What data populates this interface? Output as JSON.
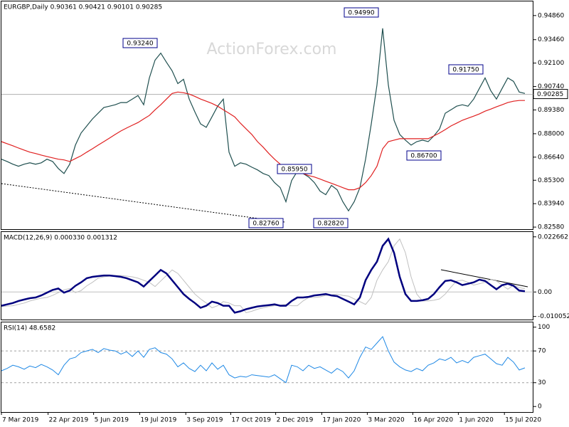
{
  "chart_data": [
    {
      "type": "line",
      "title": "EURGBP,Daily  0.90361 0.90421 0.90101 0.90285",
      "watermark": "ActionForex.com",
      "x": [
        0,
        1,
        2,
        3,
        4,
        5,
        6,
        7,
        8,
        9,
        10,
        11,
        12,
        13,
        14,
        15,
        16,
        17,
        18,
        19,
        20,
        21,
        22,
        23,
        24,
        25,
        26,
        27,
        28,
        29,
        30,
        31,
        32,
        33,
        34,
        35,
        36,
        37,
        38,
        39,
        40,
        41,
        42,
        43,
        44,
        45,
        46,
        47,
        48,
        49,
        50,
        51,
        52,
        53,
        54,
        55,
        56,
        57,
        58,
        59,
        60,
        61,
        62,
        63,
        64,
        65,
        66,
        67,
        68,
        69,
        70,
        71,
        72,
        73,
        74,
        75,
        76,
        77,
        78,
        79,
        80,
        81,
        82,
        83,
        84,
        85,
        86,
        87,
        88,
        89,
        90,
        91,
        92
      ],
      "xlim": [
        0,
        93.5
      ],
      "series": [
        {
          "color": "#1f4f4f",
          "values": [
            0.8652,
            0.8639,
            0.8623,
            0.8611,
            0.8623,
            0.8631,
            0.8623,
            0.8631,
            0.8652,
            0.8639,
            0.8598,
            0.8569,
            0.8623,
            0.8734,
            0.8804,
            0.8845,
            0.8886,
            0.8919,
            0.8952,
            0.896,
            0.8968,
            0.8981,
            0.8981,
            0.9001,
            0.9022,
            0.8968,
            0.9124,
            0.9227,
            0.9268,
            0.9215,
            0.9165,
            0.9091,
            0.9116,
            0.9001,
            0.8927,
            0.8857,
            0.8837,
            0.8898,
            0.896,
            0.9001,
            0.8693,
            0.8611,
            0.8631,
            0.8623,
            0.8606,
            0.859,
            0.8569,
            0.8557,
            0.8516,
            0.8487,
            0.8405,
            0.8528,
            0.8582,
            0.8569,
            0.8549,
            0.8516,
            0.8467,
            0.8446,
            0.85,
            0.8475,
            0.8405,
            0.8352,
            0.8405,
            0.8487,
            0.8652,
            0.8857,
            0.9083,
            0.9412,
            0.9083,
            0.8878,
            0.8796,
            0.8763,
            0.8734,
            0.8754,
            0.8763,
            0.8754,
            0.8787,
            0.8828,
            0.8919,
            0.8939,
            0.896,
            0.8968,
            0.896,
            0.9001,
            0.9063,
            0.9124,
            0.905,
            0.9001,
            0.9063,
            0.9124,
            0.9104,
            0.9042,
            0.9034
          ]
        },
        {
          "color": "#e02020",
          "values": [
            0.8754,
            0.8742,
            0.873,
            0.8717,
            0.8705,
            0.8693,
            0.8685,
            0.8676,
            0.8668,
            0.866,
            0.8652,
            0.8648,
            0.8639,
            0.8656,
            0.8672,
            0.8693,
            0.8713,
            0.8734,
            0.8754,
            0.8775,
            0.8796,
            0.8816,
            0.8833,
            0.8849,
            0.8865,
            0.8886,
            0.8906,
            0.8939,
            0.8968,
            0.9001,
            0.9034,
            0.9042,
            0.9038,
            0.903,
            0.9017,
            0.9001,
            0.8989,
            0.8976,
            0.896,
            0.8939,
            0.8919,
            0.8898,
            0.8861,
            0.8828,
            0.8796,
            0.8754,
            0.8722,
            0.8685,
            0.8652,
            0.8623,
            0.8598,
            0.859,
            0.8578,
            0.8569,
            0.8557,
            0.8549,
            0.8537,
            0.8524,
            0.8512,
            0.85,
            0.8487,
            0.8475,
            0.8475,
            0.8487,
            0.8516,
            0.8557,
            0.8611,
            0.8713,
            0.8754,
            0.8763,
            0.8771,
            0.8771,
            0.8771,
            0.8771,
            0.8771,
            0.8771,
            0.8787,
            0.8804,
            0.8824,
            0.8845,
            0.8861,
            0.8878,
            0.889,
            0.8902,
            0.8915,
            0.8931,
            0.8943,
            0.8956,
            0.8968,
            0.8981,
            0.8989,
            0.8993,
            0.8993
          ]
        }
      ],
      "ylim": [
        0.8246,
        0.9568
      ],
      "yticks": [
        {
          "value": 0.9486,
          "label": "0.94860"
        },
        {
          "value": 0.9346,
          "label": "0.93460"
        },
        {
          "value": 0.921,
          "label": "0.92100"
        },
        {
          "value": 0.9074,
          "label": "0.90740"
        },
        {
          "value": 0.8938,
          "label": "0.89380"
        },
        {
          "value": 0.88,
          "label": "0.88000"
        },
        {
          "value": 0.8664,
          "label": "0.86640"
        },
        {
          "value": 0.853,
          "label": "0.85300"
        },
        {
          "value": 0.8394,
          "label": "0.83940"
        },
        {
          "value": 0.8258,
          "label": "0.82580"
        }
      ],
      "price_line": {
        "value": 0.90285,
        "label": "0.90285"
      },
      "annotations": [
        {
          "value": 0.9324,
          "label": "0.93240"
        },
        {
          "value": 0.9499,
          "label": "0.94990"
        },
        {
          "value": 0.9175,
          "label": "0.91750"
        },
        {
          "value": 0.8595,
          "label": "0.85950"
        },
        {
          "value": 0.867,
          "label": "0.86700"
        },
        {
          "value": 0.8276,
          "label": "0.82760"
        },
        {
          "value": 0.8282,
          "label": "0.82820"
        }
      ]
    },
    {
      "type": "line",
      "title": "MACD(12,26,9) 0.000330 0.001312",
      "x": [
        0,
        1,
        2,
        3,
        4,
        5,
        6,
        7,
        8,
        9,
        10,
        11,
        12,
        13,
        14,
        15,
        16,
        17,
        18,
        19,
        20,
        21,
        22,
        23,
        24,
        25,
        26,
        27,
        28,
        29,
        30,
        31,
        32,
        33,
        34,
        35,
        36,
        37,
        38,
        39,
        40,
        41,
        42,
        43,
        44,
        45,
        46,
        47,
        48,
        49,
        50,
        51,
        52,
        53,
        54,
        55,
        56,
        57,
        58,
        59,
        60,
        61,
        62,
        63,
        64,
        65,
        66,
        67,
        68,
        69,
        70,
        71,
        72,
        73,
        74,
        75,
        76,
        77,
        78,
        79,
        80,
        81,
        82,
        83,
        84,
        85,
        86,
        87,
        88,
        89,
        90,
        91,
        92
      ],
      "xlim": [
        0,
        93.5
      ],
      "series": [
        {
          "color": "#c0c0c0",
          "values": [
            -0.006,
            -0.0058,
            -0.00566,
            -0.00509,
            -0.00453,
            -0.00368,
            -0.00311,
            -0.00255,
            -0.00226,
            -0.00142,
            -0.00028,
            0.00085,
            0.00142,
            -0.00028,
            0.00057,
            0.00255,
            0.00396,
            0.00566,
            0.00623,
            0.00651,
            0.00679,
            0.00679,
            0.00651,
            0.00623,
            0.00566,
            0.00481,
            0.00396,
            0.00226,
            0.00453,
            0.00679,
            0.00906,
            0.00764,
            0.00481,
            0.00198,
            -0.00085,
            -0.00283,
            -0.00453,
            -0.00651,
            -0.00566,
            -0.00396,
            -0.00453,
            -0.00566,
            -0.00566,
            -0.00849,
            -0.00792,
            -0.00708,
            -0.00651,
            -0.00594,
            -0.00566,
            -0.00538,
            -0.00509,
            -0.00566,
            -0.00566,
            -0.00368,
            -0.00226,
            -0.00226,
            -0.00198,
            -0.00142,
            -0.00113,
            -0.00085,
            -0.00142,
            -0.0017,
            -0.00283,
            -0.00396,
            -0.00509,
            -0.00226,
            0.00481,
            0.00906,
            0.01245,
            0.01896,
            0.02179,
            0.01613,
            0.00623,
            -0.00085,
            -0.00368,
            -0.00368,
            -0.0034,
            -0.00283,
            -0.00085,
            0.00198,
            0.00453,
            0.00481,
            0.00396,
            0.00283,
            0.0034,
            0.00396,
            0.00509,
            0.00453,
            0.00283,
            0.00113,
            0.00283,
            0.0018,
            0.00131
          ],
          "width": 1
        },
        {
          "color": "#00007f",
          "values": [
            -0.00566,
            -0.00509,
            -0.00453,
            -0.00368,
            -0.00311,
            -0.00255,
            -0.00226,
            -0.00142,
            -0.00028,
            0.00085,
            0.00142,
            -0.00028,
            0.00057,
            0.00255,
            0.00396,
            0.00566,
            0.00623,
            0.00651,
            0.00679,
            0.00679,
            0.00651,
            0.00623,
            0.00566,
            0.00481,
            0.00396,
            0.00226,
            0.00453,
            0.00679,
            0.00906,
            0.00764,
            0.00481,
            0.00198,
            -0.00085,
            -0.00283,
            -0.00453,
            -0.00651,
            -0.00566,
            -0.00396,
            -0.00453,
            -0.00566,
            -0.00566,
            -0.00849,
            -0.00792,
            -0.00708,
            -0.00651,
            -0.00594,
            -0.00566,
            -0.00538,
            -0.00509,
            -0.00566,
            -0.00566,
            -0.00368,
            -0.00226,
            -0.00226,
            -0.00198,
            -0.00142,
            -0.00113,
            -0.00085,
            -0.00142,
            -0.0017,
            -0.00283,
            -0.00396,
            -0.00509,
            -0.00226,
            0.00481,
            0.00906,
            0.01245,
            0.01896,
            0.02179,
            0.01613,
            0.00623,
            -0.00085,
            -0.00368,
            -0.00368,
            -0.0034,
            -0.00283,
            -0.00085,
            0.00198,
            0.00453,
            0.00481,
            0.00396,
            0.00283,
            0.0034,
            0.00396,
            0.00509,
            0.00453,
            0.00283,
            0.00113,
            0.00283,
            0.0034,
            0.00255,
            0.00057,
            0.00033
          ],
          "width": 2.5
        }
      ],
      "ylim": [
        -0.01132,
        0.024645
      ],
      "yticks": [
        0.022662,
        {
          "value": 0,
          "label": "0.00"
        },
        -0.010052
      ]
    },
    {
      "type": "line",
      "title": "RSI(14) 48.6582",
      "x": [
        0,
        1,
        2,
        3,
        4,
        5,
        6,
        7,
        8,
        9,
        10,
        11,
        12,
        13,
        14,
        15,
        16,
        17,
        18,
        19,
        20,
        21,
        22,
        23,
        24,
        25,
        26,
        27,
        28,
        29,
        30,
        31,
        32,
        33,
        34,
        35,
        36,
        37,
        38,
        39,
        40,
        41,
        42,
        43,
        44,
        45,
        46,
        47,
        48,
        49,
        50,
        51,
        52,
        53,
        54,
        55,
        56,
        57,
        58,
        59,
        60,
        61,
        62,
        63,
        64,
        65,
        66,
        67,
        68,
        69,
        70,
        71,
        72,
        73,
        74,
        75,
        76,
        77,
        78,
        79,
        80,
        81,
        82,
        83,
        84,
        85,
        86,
        87,
        88,
        89,
        90,
        91,
        92
      ],
      "xlim": [
        0,
        93.5
      ],
      "series": [
        {
          "color": "#1e88e5",
          "values": [
            45,
            48,
            52,
            50,
            47,
            51,
            49,
            53,
            50,
            46,
            40,
            52,
            60,
            62,
            68,
            70,
            72,
            68,
            73,
            71,
            70,
            66,
            69,
            63,
            70,
            62,
            72,
            74,
            68,
            66,
            60,
            50,
            55,
            48,
            44,
            52,
            45,
            55,
            47,
            52,
            40,
            36,
            38,
            37,
            40,
            39,
            38,
            37,
            40,
            35,
            30,
            52,
            50,
            45,
            52,
            48,
            50,
            46,
            42,
            48,
            44,
            36,
            45,
            62,
            75,
            72,
            80,
            88,
            70,
            56,
            50,
            46,
            44,
            48,
            45,
            52,
            55,
            60,
            58,
            62,
            55,
            58,
            55,
            62,
            64,
            66,
            60,
            54,
            52,
            62,
            56,
            46,
            48.6582
          ],
          "width": 1
        }
      ],
      "ylim": [
        -7,
        106
      ],
      "yticks": [
        100,
        70,
        30,
        0
      ],
      "levels": [
        70,
        30
      ],
      "xticks": [
        {
          "value": 0,
          "label": "7 Mar 2019"
        },
        {
          "value": 8.2,
          "label": "22 Apr 2019"
        },
        {
          "value": 16.2,
          "label": "5 Jun 2019"
        },
        {
          "value": 24.3,
          "label": "19 Jul 2019"
        },
        {
          "value": 32.4,
          "label": "3 Sep 2019"
        },
        {
          "value": 40.3,
          "label": "17 Oct 2019"
        },
        {
          "value": 48.2,
          "label": "2 Dec 2019"
        },
        {
          "value": 56.3,
          "label": "17 Jan 2020"
        },
        {
          "value": 64.3,
          "label": "3 Mar 2020"
        },
        {
          "value": 72.3,
          "label": "16 Apr 2020"
        },
        {
          "value": 80.3,
          "label": "1 Jun 2020"
        },
        {
          "value": 88.4,
          "label": "15 Jul 2020"
        }
      ]
    }
  ]
}
